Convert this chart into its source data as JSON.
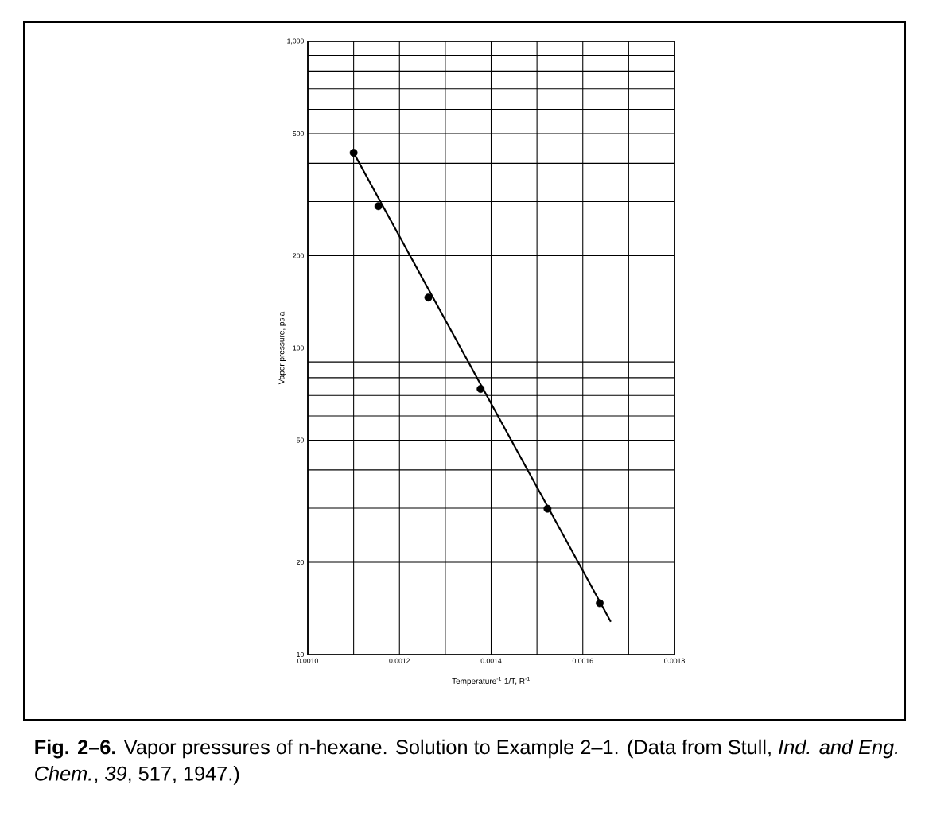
{
  "chart_data": {
    "type": "scatter",
    "xlabel": "Temperature$^{-1}$  1/T,  R$^{-1}$",
    "ylabel": "Vapor pressure, psia",
    "annotations": [
      "**Fig. 2–6.** Vapor pressures of n-hexane. Solution to Example 2–1. (Data from Stull, *Ind. and Eng. Chem.*, *39*, 517, 1947.)"
    ],
    "series": [
      {
        "color": "#000000",
        "marker": "circle",
        "x": [
          0.0011,
          0.001154,
          0.001263,
          0.001377,
          0.001523,
          0.001637
        ],
        "values": [
          433,
          290,
          146,
          73.5,
          29.9,
          14.7
        ]
      },
      {
        "type": "line",
        "color": "#000000",
        "marker": "none",
        "line_style": "solid",
        "x": [
          0.0011,
          0.001661
        ],
        "values": [
          433,
          12.8
        ]
      }
    ],
    "log": "y",
    "grid": true,
    "xlim": [
      0.001,
      0.0018
    ],
    "ylim": [
      10,
      1000
    ],
    "xticks": [
      {
        "value": 0.001,
        "label": "0.0010"
      },
      {
        "value": 0.0011,
        "label": null
      },
      {
        "value": 0.0012,
        "label": "0.0012"
      },
      {
        "value": 0.0013,
        "label": null
      },
      {
        "value": 0.0014,
        "label": "0.0014"
      },
      {
        "value": 0.0015,
        "label": null
      },
      {
        "value": 0.0016,
        "label": "0.0016"
      },
      {
        "value": 0.0017,
        "label": null
      },
      {
        "value": 0.0018,
        "label": "0.0018"
      }
    ],
    "yticks": [
      10,
      20,
      {
        "value": 30,
        "label": null
      },
      {
        "value": 40,
        "label": null
      },
      50,
      {
        "value": 60,
        "label": null
      },
      {
        "value": 70,
        "label": null
      },
      {
        "value": 80,
        "label": null
      },
      {
        "value": 90,
        "label": null
      },
      100,
      200,
      {
        "value": 300,
        "label": null
      },
      {
        "value": 400,
        "label": null
      },
      500,
      {
        "value": 600,
        "label": null
      },
      {
        "value": 700,
        "label": null
      },
      {
        "value": 800,
        "label": null
      },
      {
        "value": 900,
        "label": null
      },
      {
        "value": 1000,
        "label": "1,000"
      }
    ]
  }
}
